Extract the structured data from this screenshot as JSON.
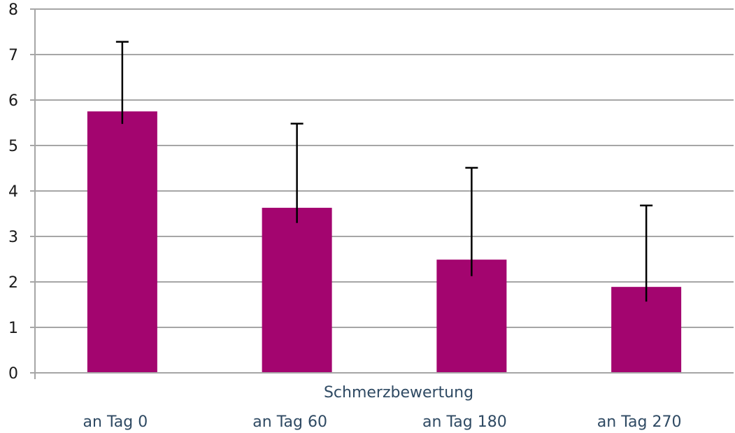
{
  "chart_data": {
    "type": "bar",
    "xlabel": "Schmerzbewertung",
    "ylabel": "",
    "categories": [
      "an Tag 0",
      "an Tag 60",
      "an Tag 180",
      "an Tag 270"
    ],
    "values": [
      5.75,
      3.63,
      2.49,
      1.89
    ],
    "error_upper": [
      7.28,
      5.48,
      4.51,
      3.68
    ],
    "ylim": [
      0,
      8
    ],
    "yticks": [
      0,
      1,
      2,
      3,
      4,
      5,
      6,
      7,
      8
    ],
    "grid": true,
    "legend": "none",
    "bar_color": "#a3056f"
  }
}
